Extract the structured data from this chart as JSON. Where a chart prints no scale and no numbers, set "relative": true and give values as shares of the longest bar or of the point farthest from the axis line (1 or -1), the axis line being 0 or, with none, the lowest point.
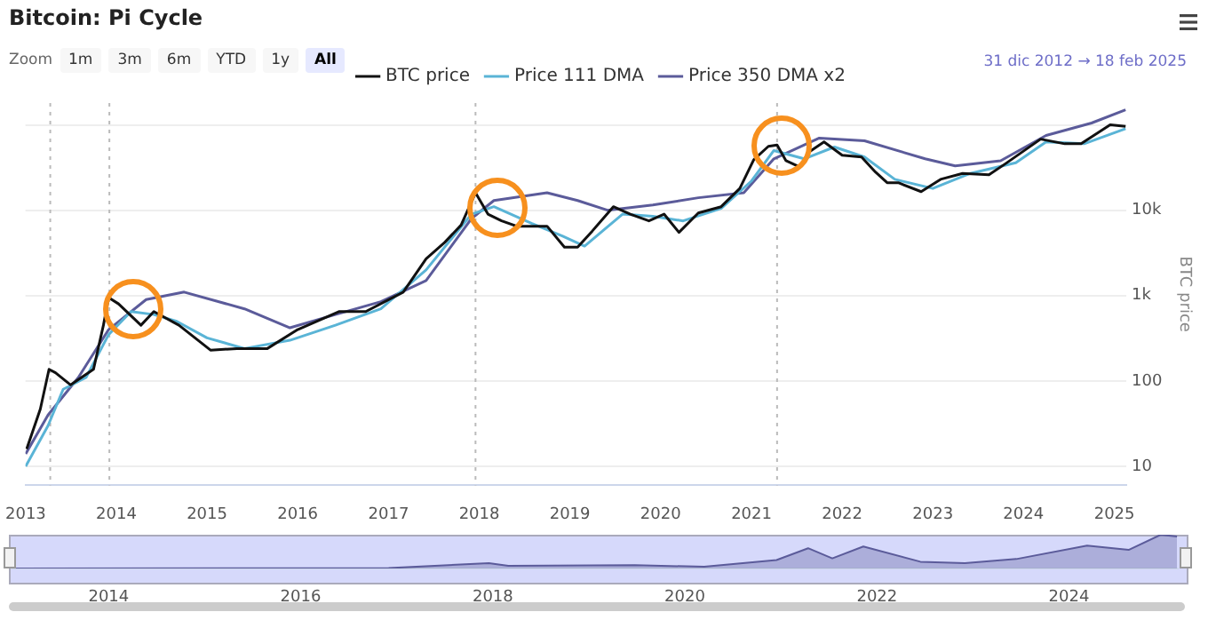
{
  "chart_data": [
    {
      "type": "line",
      "title": "Bitcoin: Pi Cycle",
      "ylabel": "BTC price",
      "log": "y",
      "grid": "y",
      "legend": "top",
      "line_style": "solid",
      "marker": "none",
      "annotations": [
        "Zoom",
        "1m",
        "3m",
        "6m",
        "YTD",
        "1y",
        "All",
        "31 dic 2012 → 18 feb 2025"
      ],
      "xlim": [
        "2012-12-31",
        "2025-02-18"
      ],
      "xticks": [
        {
          "value": "2013",
          "label": "2013"
        },
        {
          "value": "2014",
          "label": "2014"
        },
        {
          "value": "2015",
          "label": "2015"
        },
        {
          "value": "2016",
          "label": "2016"
        },
        {
          "value": "2017",
          "label": "2017"
        },
        {
          "value": "2018",
          "label": "2018"
        },
        {
          "value": "2019",
          "label": "2019"
        },
        {
          "value": "2020",
          "label": "2020"
        },
        {
          "value": "2021",
          "label": "2021"
        },
        {
          "value": "2022",
          "label": "2022"
        },
        {
          "value": "2023",
          "label": "2023"
        },
        {
          "value": "2024",
          "label": "2024"
        },
        {
          "value": "2025",
          "label": "2025"
        }
      ],
      "ylim": [
        6,
        180000
      ],
      "yticks": [
        10,
        100,
        {
          "value": 1000,
          "label": "1k"
        },
        {
          "value": 10000,
          "label": "10k"
        },
        {
          "value": 100000,
          "label": null
        }
      ],
      "ref_lines": [
        {
          "axis": "x",
          "value": "2013-04-10",
          "color": "#bbbbbb",
          "line_style": "dotted"
        },
        {
          "axis": "x",
          "value": "2013-12-04",
          "color": "#bbbbbb",
          "line_style": "dotted"
        },
        {
          "axis": "x",
          "value": "2017-12-17",
          "color": "#bbbbbb",
          "line_style": "dotted"
        },
        {
          "axis": "x",
          "value": "2021-04-14",
          "color": "#bbbbbb",
          "line_style": "dotted"
        }
      ],
      "series": [
        {
          "name": "BTC price",
          "color": "#111111",
          "x": [
            "2013-01-05",
            "2013-03-01",
            "2013-04-05",
            "2013-05-01",
            "2013-07-01",
            "2013-10-01",
            "2013-11-10",
            "2013-12-01",
            "2014-01-10",
            "2014-04-10",
            "2014-06-01",
            "2014-09-10",
            "2015-01-15",
            "2015-05-01",
            "2015-09-01",
            "2016-01-01",
            "2016-06-15",
            "2016-10-01",
            "2017-03-01",
            "2017-06-01",
            "2017-08-15",
            "2017-10-20",
            "2017-12-17",
            "2018-02-05",
            "2018-04-01",
            "2018-06-01",
            "2018-10-01",
            "2018-12-10",
            "2019-02-01",
            "2019-04-01",
            "2019-06-25",
            "2019-09-01",
            "2019-11-15",
            "2020-01-15",
            "2020-03-15",
            "2020-06-01",
            "2020-09-01",
            "2020-11-15",
            "2021-01-10",
            "2021-03-10",
            "2021-04-14",
            "2021-05-20",
            "2021-07-15",
            "2021-08-20",
            "2021-10-20",
            "2022-01-01",
            "2022-03-20",
            "2022-05-15",
            "2022-07-01",
            "2022-08-15",
            "2022-11-15",
            "2023-02-01",
            "2023-05-01",
            "2023-08-15",
            "2023-10-20",
            "2024-03-10",
            "2024-06-15",
            "2024-08-20",
            "2024-12-15",
            "2025-02-15"
          ],
          "values": [
            16,
            47,
            137,
            125,
            90,
            137,
            450,
            950,
            800,
            450,
            650,
            450,
            230,
            240,
            240,
            400,
            650,
            650,
            1100,
            2700,
            4200,
            6700,
            16000,
            9000,
            7500,
            6500,
            6500,
            3700,
            3700,
            5700,
            11000,
            9000,
            7500,
            9000,
            5500,
            9300,
            11000,
            18000,
            39000,
            56000,
            58000,
            38000,
            32000,
            48000,
            63000,
            44000,
            42000,
            28000,
            21000,
            21000,
            16500,
            23000,
            27000,
            26000,
            35000,
            68000,
            60000,
            60000,
            100000,
            96000
          ]
        },
        {
          "name": "Price 111 DMA",
          "color": "#5ab4d6",
          "x": [
            "2013-01-01",
            "2013-04-01",
            "2013-06-01",
            "2013-09-01",
            "2013-12-01",
            "2014-03-01",
            "2014-06-01",
            "2014-09-01",
            "2015-01-01",
            "2015-06-01",
            "2015-12-01",
            "2016-06-01",
            "2016-12-01",
            "2017-06-01",
            "2017-12-01",
            "2018-03-01",
            "2018-08-01",
            "2018-12-01",
            "2019-03-01",
            "2019-08-01",
            "2019-12-01",
            "2020-04-01",
            "2020-09-01",
            "2021-01-01",
            "2021-04-01",
            "2021-08-01",
            "2021-12-01",
            "2022-04-01",
            "2022-08-01",
            "2023-01-01",
            "2023-06-01",
            "2023-12-01",
            "2024-04-01",
            "2024-09-01",
            "2025-02-15"
          ],
          "values": [
            10,
            30,
            80,
            110,
            350,
            650,
            600,
            500,
            320,
            240,
            300,
            450,
            700,
            2000,
            9000,
            11000,
            7000,
            5000,
            3800,
            9000,
            8500,
            7500,
            10500,
            22000,
            50000,
            40000,
            55000,
            42000,
            23000,
            18000,
            27000,
            36000,
            63000,
            60000,
            90000
          ]
        },
        {
          "name": "Price 350 DMA x2",
          "color": "#5b5b9a",
          "x": [
            "2013-01-01",
            "2013-04-01",
            "2013-08-01",
            "2013-12-01",
            "2014-05-01",
            "2014-10-01",
            "2015-06-01",
            "2015-12-01",
            "2016-06-01",
            "2016-12-01",
            "2017-06-01",
            "2017-12-01",
            "2018-03-01",
            "2018-10-01",
            "2019-02-01",
            "2019-06-01",
            "2019-12-01",
            "2020-06-01",
            "2020-12-01",
            "2021-04-01",
            "2021-10-01",
            "2022-04-01",
            "2022-12-01",
            "2023-04-01",
            "2023-10-01",
            "2024-04-01",
            "2024-10-01",
            "2025-02-15"
          ],
          "values": [
            14,
            40,
            110,
            400,
            900,
            1100,
            700,
            420,
            600,
            850,
            1500,
            8000,
            13000,
            16000,
            13000,
            10000,
            11500,
            14000,
            16000,
            40000,
            70000,
            65000,
            40000,
            33000,
            38000,
            75000,
            105000,
            150000
          ]
        }
      ]
    },
    {
      "type": "area",
      "relative": true,
      "tick_labels": "x",
      "grid": false,
      "legend": false,
      "xlim": [
        "2012-12-31",
        "2025-02-18"
      ],
      "xticks": [
        {
          "value": "2014",
          "label": "2014"
        },
        {
          "value": "2016",
          "label": "2016"
        },
        {
          "value": "2018",
          "label": "2018"
        },
        {
          "value": "2020",
          "label": "2020"
        },
        {
          "value": "2022",
          "label": "2022"
        },
        {
          "value": "2024",
          "label": "2024"
        }
      ],
      "series": [
        {
          "color": "#5b5b9a",
          "x": [
            "2012-12-31",
            "2016-12-01",
            "2017-12-17",
            "2018-03-01",
            "2019-06-25",
            "2020-03-15",
            "2020-12-15",
            "2021-04-14",
            "2021-07-15",
            "2021-11-10",
            "2022-06-15",
            "2022-12-01",
            "2023-06-15",
            "2024-03-10",
            "2024-08-15",
            "2024-12-15",
            "2025-02-15"
          ],
          "values": [
            0,
            0.01,
            0.16,
            0.08,
            0.1,
            0.05,
            0.25,
            0.6,
            0.3,
            0.65,
            0.2,
            0.16,
            0.28,
            0.68,
            0.55,
            1,
            0.95
          ]
        }
      ]
    }
  ]
}
